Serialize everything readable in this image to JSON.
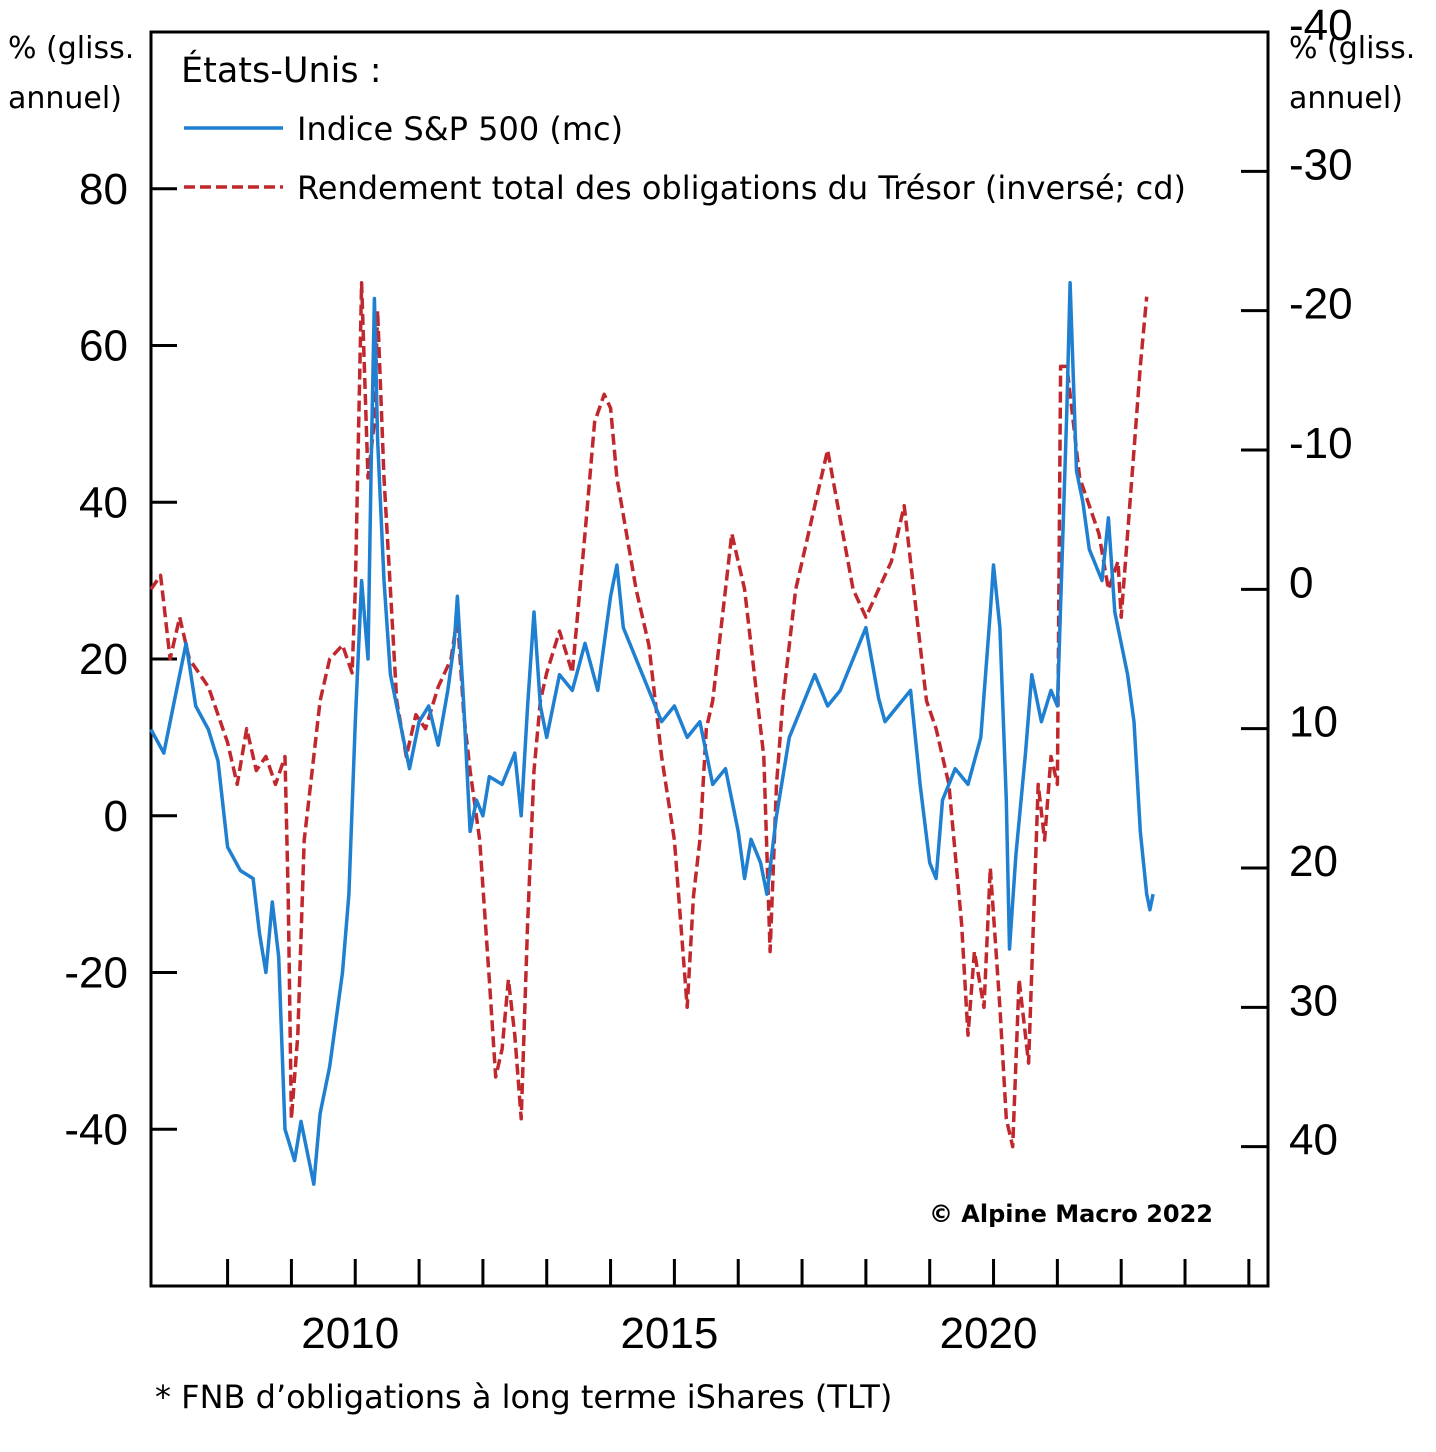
{
  "chart_data": {
    "type": "line",
    "legend": {
      "title": "États-Unis :",
      "position": "top-left",
      "entries": [
        {
          "label": "Indice S&P 500 (mc)",
          "color": "#1f7fd0",
          "style": "solid"
        },
        {
          "label": "Rendement total des obligations du Trésor (inversé; cd)",
          "color": "#c0282d",
          "style": "dashed"
        }
      ]
    },
    "y_left": {
      "unit": [
        "% (gliss.",
        "annuel)"
      ],
      "ticks": [
        80,
        60,
        40,
        20,
        0,
        -20,
        -40
      ],
      "tick_labels": [
        "80",
        "60",
        "40",
        "20",
        "0",
        "-20",
        "-40"
      ],
      "range": [
        -60,
        100
      ]
    },
    "y_right": {
      "unit": [
        "% (gliss.",
        "annuel)"
      ],
      "inverted": true,
      "ticks": [
        -40,
        -30,
        -20,
        -10,
        0,
        10,
        20,
        30,
        40
      ],
      "tick_labels": [
        "-40",
        "-30",
        "-20",
        "-10",
        "0",
        "10",
        "20",
        "30",
        "40"
      ],
      "range": [
        -40,
        50
      ]
    },
    "x_axis": {
      "range": [
        2006.8,
        2024.3
      ],
      "major_ticks": [
        2010,
        2015,
        2020
      ],
      "major_labels": [
        "2010",
        "2015",
        "2020"
      ],
      "minor_ticks": [
        2008,
        2009,
        2010,
        2011,
        2012,
        2013,
        2014,
        2015,
        2016,
        2017,
        2018,
        2019,
        2020,
        2021,
        2022,
        2023,
        2024
      ]
    },
    "series": [
      {
        "name": "Indice S&P 500 (mc)",
        "axis": "left",
        "color": "#1f7fd0",
        "points": [
          [
            2006.8,
            11
          ],
          [
            2007.0,
            8
          ],
          [
            2007.2,
            16
          ],
          [
            2007.35,
            22
          ],
          [
            2007.5,
            14
          ],
          [
            2007.7,
            11
          ],
          [
            2007.85,
            7
          ],
          [
            2008.0,
            -4
          ],
          [
            2008.2,
            -7
          ],
          [
            2008.4,
            -8
          ],
          [
            2008.5,
            -15
          ],
          [
            2008.6,
            -20
          ],
          [
            2008.7,
            -11
          ],
          [
            2008.8,
            -18
          ],
          [
            2008.9,
            -40
          ],
          [
            2009.05,
            -44
          ],
          [
            2009.15,
            -39
          ],
          [
            2009.25,
            -43
          ],
          [
            2009.35,
            -47
          ],
          [
            2009.45,
            -38
          ],
          [
            2009.6,
            -32
          ],
          [
            2009.7,
            -26
          ],
          [
            2009.8,
            -20
          ],
          [
            2009.9,
            -10
          ],
          [
            2010.0,
            12
          ],
          [
            2010.1,
            30
          ],
          [
            2010.2,
            20
          ],
          [
            2010.25,
            45
          ],
          [
            2010.3,
            66
          ],
          [
            2010.35,
            48
          ],
          [
            2010.45,
            30
          ],
          [
            2010.55,
            18
          ],
          [
            2010.7,
            12
          ],
          [
            2010.85,
            6
          ],
          [
            2011.0,
            12
          ],
          [
            2011.15,
            14
          ],
          [
            2011.3,
            9
          ],
          [
            2011.45,
            16
          ],
          [
            2011.55,
            22
          ],
          [
            2011.6,
            28
          ],
          [
            2011.7,
            14
          ],
          [
            2011.8,
            -2
          ],
          [
            2011.9,
            2
          ],
          [
            2012.0,
            0
          ],
          [
            2012.1,
            5
          ],
          [
            2012.3,
            4
          ],
          [
            2012.5,
            8
          ],
          [
            2012.6,
            0
          ],
          [
            2012.7,
            14
          ],
          [
            2012.8,
            26
          ],
          [
            2012.9,
            14
          ],
          [
            2013.0,
            10
          ],
          [
            2013.2,
            18
          ],
          [
            2013.4,
            16
          ],
          [
            2013.6,
            22
          ],
          [
            2013.8,
            16
          ],
          [
            2014.0,
            28
          ],
          [
            2014.1,
            32
          ],
          [
            2014.2,
            24
          ],
          [
            2014.4,
            20
          ],
          [
            2014.6,
            16
          ],
          [
            2014.8,
            12
          ],
          [
            2015.0,
            14
          ],
          [
            2015.2,
            10
          ],
          [
            2015.4,
            12
          ],
          [
            2015.5,
            8
          ],
          [
            2015.6,
            4
          ],
          [
            2015.8,
            6
          ],
          [
            2016.0,
            -2
          ],
          [
            2016.1,
            -8
          ],
          [
            2016.2,
            -3
          ],
          [
            2016.35,
            -6
          ],
          [
            2016.45,
            -10
          ],
          [
            2016.6,
            0
          ],
          [
            2016.8,
            10
          ],
          [
            2017.0,
            14
          ],
          [
            2017.2,
            18
          ],
          [
            2017.4,
            14
          ],
          [
            2017.6,
            16
          ],
          [
            2017.8,
            20
          ],
          [
            2018.0,
            24
          ],
          [
            2018.2,
            15
          ],
          [
            2018.3,
            12
          ],
          [
            2018.5,
            14
          ],
          [
            2018.7,
            16
          ],
          [
            2018.85,
            4
          ],
          [
            2019.0,
            -6
          ],
          [
            2019.1,
            -8
          ],
          [
            2019.2,
            2
          ],
          [
            2019.4,
            6
          ],
          [
            2019.6,
            4
          ],
          [
            2019.8,
            10
          ],
          [
            2019.95,
            26
          ],
          [
            2020.0,
            32
          ],
          [
            2020.1,
            24
          ],
          [
            2020.2,
            2
          ],
          [
            2020.25,
            -17
          ],
          [
            2020.35,
            -5
          ],
          [
            2020.5,
            8
          ],
          [
            2020.6,
            18
          ],
          [
            2020.75,
            12
          ],
          [
            2020.9,
            16
          ],
          [
            2021.0,
            14
          ],
          [
            2021.15,
            52
          ],
          [
            2021.2,
            68
          ],
          [
            2021.3,
            44
          ],
          [
            2021.4,
            40
          ],
          [
            2021.5,
            34
          ],
          [
            2021.6,
            32
          ],
          [
            2021.7,
            30
          ],
          [
            2021.8,
            38
          ],
          [
            2021.9,
            26
          ],
          [
            2022.0,
            22
          ],
          [
            2022.1,
            18
          ],
          [
            2022.2,
            12
          ],
          [
            2022.3,
            -2
          ],
          [
            2022.35,
            -6
          ],
          [
            2022.4,
            -10
          ],
          [
            2022.45,
            -12
          ],
          [
            2022.5,
            -10
          ]
        ]
      },
      {
        "name": "Rendement total des obligations du Trésor (inversé; cd)",
        "axis": "right",
        "color": "#c0282d",
        "points": [
          [
            2006.8,
            0
          ],
          [
            2006.95,
            -1
          ],
          [
            2007.1,
            5
          ],
          [
            2007.25,
            2
          ],
          [
            2007.4,
            5
          ],
          [
            2007.55,
            6
          ],
          [
            2007.7,
            7
          ],
          [
            2007.85,
            9
          ],
          [
            2008.0,
            11
          ],
          [
            2008.15,
            14
          ],
          [
            2008.3,
            10
          ],
          [
            2008.45,
            13
          ],
          [
            2008.6,
            12
          ],
          [
            2008.75,
            14
          ],
          [
            2008.9,
            12
          ],
          [
            2008.95,
            22
          ],
          [
            2009.0,
            38
          ],
          [
            2009.1,
            32
          ],
          [
            2009.2,
            18
          ],
          [
            2009.3,
            14
          ],
          [
            2009.45,
            8
          ],
          [
            2009.6,
            5
          ],
          [
            2009.8,
            4
          ],
          [
            2009.95,
            6
          ],
          [
            2010.0,
            0
          ],
          [
            2010.1,
            -22
          ],
          [
            2010.2,
            -8
          ],
          [
            2010.3,
            -12
          ],
          [
            2010.35,
            -20
          ],
          [
            2010.45,
            -8
          ],
          [
            2010.55,
            0
          ],
          [
            2010.65,
            8
          ],
          [
            2010.8,
            12
          ],
          [
            2010.95,
            9
          ],
          [
            2011.1,
            10
          ],
          [
            2011.3,
            7
          ],
          [
            2011.5,
            5
          ],
          [
            2011.6,
            2
          ],
          [
            2011.7,
            9
          ],
          [
            2011.8,
            13
          ],
          [
            2011.95,
            18
          ],
          [
            2012.1,
            28
          ],
          [
            2012.2,
            35
          ],
          [
            2012.3,
            33
          ],
          [
            2012.4,
            28
          ],
          [
            2012.5,
            32
          ],
          [
            2012.6,
            38
          ],
          [
            2012.7,
            24
          ],
          [
            2012.8,
            13
          ],
          [
            2012.9,
            8
          ],
          [
            2013.0,
            6
          ],
          [
            2013.2,
            3
          ],
          [
            2013.4,
            6
          ],
          [
            2013.6,
            -4
          ],
          [
            2013.75,
            -12
          ],
          [
            2013.9,
            -14
          ],
          [
            2014.0,
            -13
          ],
          [
            2014.1,
            -8
          ],
          [
            2014.25,
            -4
          ],
          [
            2014.4,
            0
          ],
          [
            2014.6,
            4
          ],
          [
            2014.8,
            12
          ],
          [
            2015.0,
            18
          ],
          [
            2015.1,
            24
          ],
          [
            2015.2,
            30
          ],
          [
            2015.3,
            22
          ],
          [
            2015.4,
            18
          ],
          [
            2015.5,
            10
          ],
          [
            2015.6,
            8
          ],
          [
            2015.8,
            0
          ],
          [
            2015.9,
            -4
          ],
          [
            2016.1,
            0
          ],
          [
            2016.25,
            6
          ],
          [
            2016.4,
            12
          ],
          [
            2016.5,
            26
          ],
          [
            2016.6,
            14
          ],
          [
            2016.7,
            8
          ],
          [
            2016.9,
            0
          ],
          [
            2017.0,
            -2
          ],
          [
            2017.2,
            -6
          ],
          [
            2017.4,
            -10
          ],
          [
            2017.6,
            -5
          ],
          [
            2017.8,
            0
          ],
          [
            2018.0,
            2
          ],
          [
            2018.2,
            0
          ],
          [
            2018.4,
            -2
          ],
          [
            2018.6,
            -6
          ],
          [
            2018.8,
            2
          ],
          [
            2018.95,
            8
          ],
          [
            2019.1,
            10
          ],
          [
            2019.3,
            14
          ],
          [
            2019.5,
            24
          ],
          [
            2019.6,
            32
          ],
          [
            2019.7,
            26
          ],
          [
            2019.85,
            30
          ],
          [
            2019.95,
            20
          ],
          [
            2020.1,
            30
          ],
          [
            2020.2,
            38
          ],
          [
            2020.3,
            40
          ],
          [
            2020.4,
            28
          ],
          [
            2020.55,
            34
          ],
          [
            2020.7,
            14
          ],
          [
            2020.8,
            18
          ],
          [
            2020.9,
            12
          ],
          [
            2021.0,
            14
          ],
          [
            2021.05,
            -16
          ],
          [
            2021.15,
            -16
          ],
          [
            2021.25,
            -12
          ],
          [
            2021.35,
            -8
          ],
          [
            2021.5,
            -6
          ],
          [
            2021.65,
            -4
          ],
          [
            2021.8,
            0
          ],
          [
            2021.95,
            -2
          ],
          [
            2022.0,
            2
          ],
          [
            2022.1,
            -4
          ],
          [
            2022.2,
            -10
          ],
          [
            2022.3,
            -16
          ],
          [
            2022.4,
            -21
          ]
        ]
      }
    ],
    "annotations": [
      "© Alpine Macro 2022"
    ],
    "footnote": "* FNB d’obligations à long terme iShares (TLT)",
    "grid": false
  }
}
